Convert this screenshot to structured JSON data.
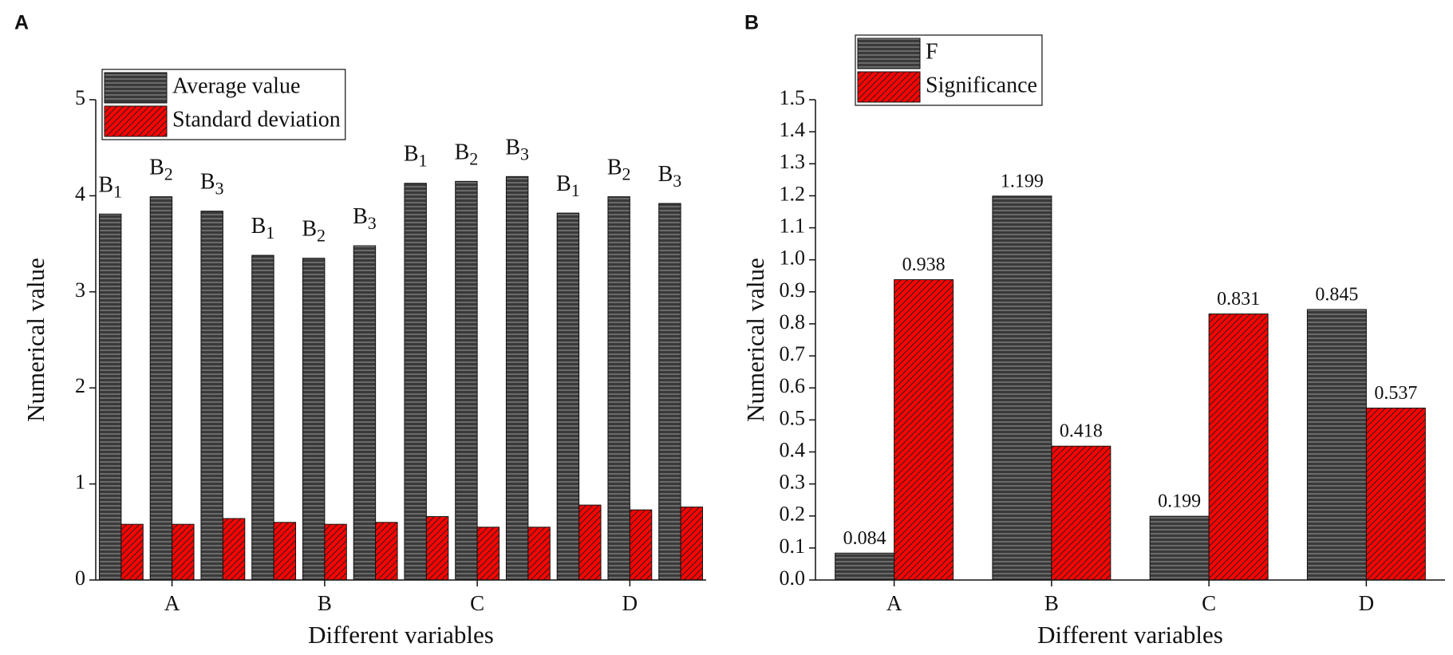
{
  "chart_data": [
    {
      "type": "bar",
      "panel": "A",
      "ylabel": "Numerical value",
      "xlabel": "Different variables",
      "categories": [
        null,
        "A",
        null,
        null,
        "B",
        null,
        null,
        "C",
        null,
        null,
        "D",
        null
      ],
      "annotations": [
        {
          "text": "B",
          "sub": "1"
        },
        {
          "text": "B",
          "sub": "2"
        },
        {
          "text": "B",
          "sub": "3"
        },
        {
          "text": "B",
          "sub": "1"
        },
        {
          "text": "B",
          "sub": "2"
        },
        {
          "text": "B",
          "sub": "3"
        },
        {
          "text": "B",
          "sub": "1"
        },
        {
          "text": "B",
          "sub": "2"
        },
        {
          "text": "B",
          "sub": "3"
        },
        {
          "text": "B",
          "sub": "1"
        },
        {
          "text": "B",
          "sub": "2"
        },
        {
          "text": "B",
          "sub": "3"
        }
      ],
      "series": [
        {
          "name": "Average value",
          "color": "#3a3a3a",
          "pattern": "horizontal",
          "values": [
            3.81,
            3.99,
            3.84,
            3.38,
            3.35,
            3.48,
            4.13,
            4.15,
            4.2,
            3.82,
            3.99,
            3.92
          ]
        },
        {
          "name": "Standard deviation",
          "color": "#ff0000",
          "pattern": "diagonal",
          "values": [
            0.58,
            0.58,
            0.64,
            0.6,
            0.58,
            0.6,
            0.66,
            0.55,
            0.55,
            0.78,
            0.73,
            0.76
          ]
        }
      ],
      "ylim": [
        0,
        5
      ],
      "yticks": [
        0,
        1,
        2,
        3,
        4,
        5
      ],
      "legend": "top left"
    },
    {
      "type": "bar",
      "panel": "B",
      "ylabel": "Numerical value",
      "xlabel": "Different variables",
      "categories": [
        "A",
        "B",
        "C",
        "D"
      ],
      "series": [
        {
          "name": "F",
          "color": "#3a3a3a",
          "pattern": "horizontal",
          "values": [
            0.084,
            1.199,
            0.199,
            0.845
          ]
        },
        {
          "name": "Significance",
          "color": "#ff0000",
          "pattern": "diagonal",
          "values": [
            0.938,
            0.418,
            0.831,
            0.537
          ]
        }
      ],
      "ylim": [
        0,
        1.5
      ],
      "yticks": [
        {
          "value": 0,
          "label": "0.0"
        },
        0.1,
        0.2,
        0.3,
        0.4,
        0.5,
        0.6,
        0.7,
        0.8,
        0.9,
        {
          "value": 1,
          "label": "1.0"
        },
        1.1,
        1.2,
        1.3,
        1.4,
        1.5
      ],
      "legend": "top left",
      "value_labels_shown": true
    }
  ]
}
